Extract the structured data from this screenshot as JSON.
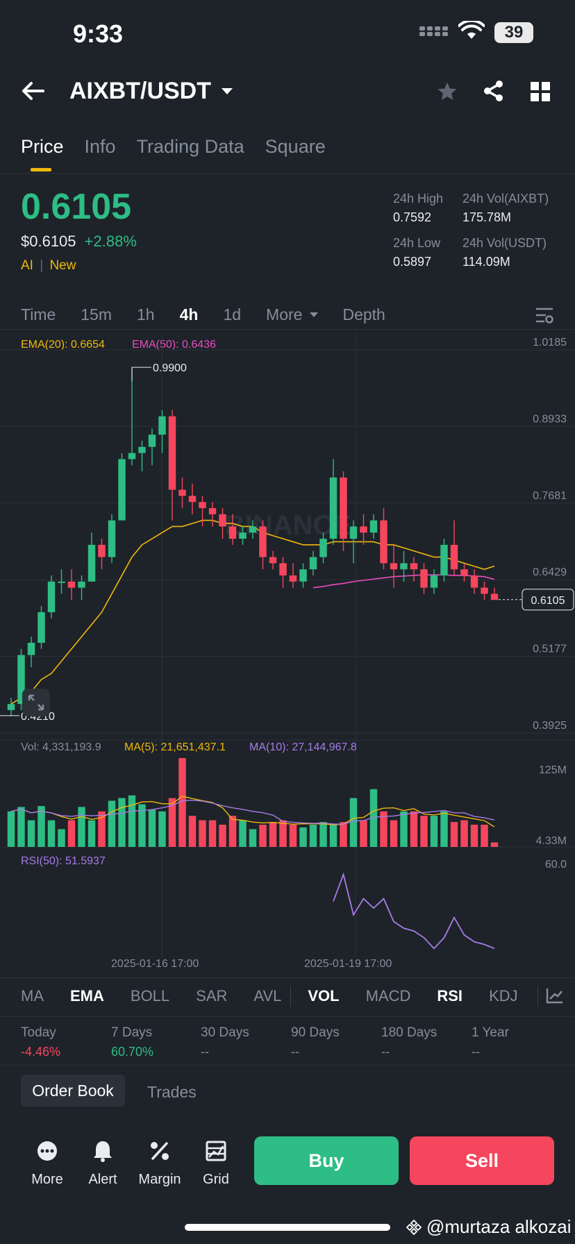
{
  "status": {
    "time": "9:33",
    "battery": "39"
  },
  "header": {
    "pair": "AIXBT/USDT"
  },
  "tabs": [
    "Price",
    "Info",
    "Trading Data",
    "Square"
  ],
  "price": {
    "last": "0.6105",
    "usd": "$0.6105",
    "change": "+2.88%",
    "tag1": "AI",
    "tag2": "New"
  },
  "stats": {
    "high_label": "24h High",
    "high": "0.7592",
    "vol_base_label": "24h Vol(AIXBT)",
    "vol_base": "175.78M",
    "low_label": "24h Low",
    "low": "0.5897",
    "vol_quote_label": "24h Vol(USDT)",
    "vol_quote": "114.09M"
  },
  "timeframes": [
    "Time",
    "15m",
    "1h",
    "4h",
    "1d",
    "More",
    "Depth"
  ],
  "active_timeframe": "4h",
  "chart": {
    "ema20": "EMA(20): 0.6654",
    "ema50": "EMA(50): 0.6436",
    "high_mark": "0.9900",
    "low_mark": "0.4210",
    "current": "0.6105",
    "vol_text": "Vol: 4,331,193.9",
    "ma5": "MA(5): 21,651,437.1",
    "ma10": "MA(10): 27,144,967.8",
    "vol_max": "125M",
    "vol_min": "4.33M",
    "rsi": "RSI(50): 51.5937",
    "rsi_level": "60.0",
    "date1": "2025-01-16 17:00",
    "date2": "2025-01-19 17:00",
    "watermark": "BINANCE"
  },
  "chart_data": {
    "type": "candlestick",
    "y_ticks": [
      "1.0185",
      "0.8933",
      "0.7681",
      "0.6429",
      "0.5177",
      "0.3925"
    ],
    "ylim": [
      0.3925,
      1.0185
    ],
    "candles": [
      [
        0.43,
        0.45,
        0.42,
        0.44
      ],
      [
        0.44,
        0.53,
        0.43,
        0.52
      ],
      [
        0.52,
        0.55,
        0.5,
        0.54
      ],
      [
        0.54,
        0.6,
        0.53,
        0.59
      ],
      [
        0.59,
        0.65,
        0.58,
        0.64
      ],
      [
        0.64,
        0.66,
        0.62,
        0.64
      ],
      [
        0.64,
        0.66,
        0.61,
        0.63
      ],
      [
        0.63,
        0.65,
        0.61,
        0.64
      ],
      [
        0.64,
        0.72,
        0.64,
        0.7
      ],
      [
        0.7,
        0.71,
        0.66,
        0.68
      ],
      [
        0.68,
        0.75,
        0.67,
        0.74
      ],
      [
        0.74,
        0.85,
        0.74,
        0.84
      ],
      [
        0.84,
        0.99,
        0.83,
        0.85
      ],
      [
        0.85,
        0.87,
        0.82,
        0.86
      ],
      [
        0.86,
        0.89,
        0.83,
        0.88
      ],
      [
        0.88,
        0.92,
        0.85,
        0.91
      ],
      [
        0.91,
        0.92,
        0.74,
        0.79
      ],
      [
        0.79,
        0.81,
        0.76,
        0.78
      ],
      [
        0.78,
        0.8,
        0.75,
        0.77
      ],
      [
        0.77,
        0.78,
        0.73,
        0.76
      ],
      [
        0.76,
        0.77,
        0.73,
        0.75
      ],
      [
        0.75,
        0.76,
        0.71,
        0.73
      ],
      [
        0.73,
        0.75,
        0.7,
        0.71
      ],
      [
        0.71,
        0.73,
        0.7,
        0.72
      ],
      [
        0.72,
        0.74,
        0.71,
        0.73
      ],
      [
        0.73,
        0.74,
        0.66,
        0.68
      ],
      [
        0.68,
        0.69,
        0.66,
        0.67
      ],
      [
        0.67,
        0.68,
        0.63,
        0.65
      ],
      [
        0.65,
        0.67,
        0.63,
        0.64
      ],
      [
        0.64,
        0.67,
        0.63,
        0.66
      ],
      [
        0.66,
        0.69,
        0.65,
        0.68
      ],
      [
        0.68,
        0.72,
        0.67,
        0.71
      ],
      [
        0.71,
        0.84,
        0.7,
        0.81
      ],
      [
        0.81,
        0.82,
        0.69,
        0.71
      ],
      [
        0.71,
        0.74,
        0.67,
        0.73
      ],
      [
        0.73,
        0.75,
        0.7,
        0.72
      ],
      [
        0.72,
        0.75,
        0.71,
        0.74
      ],
      [
        0.74,
        0.76,
        0.66,
        0.67
      ],
      [
        0.67,
        0.7,
        0.63,
        0.66
      ],
      [
        0.66,
        0.69,
        0.64,
        0.67
      ],
      [
        0.67,
        0.68,
        0.64,
        0.66
      ],
      [
        0.66,
        0.67,
        0.62,
        0.63
      ],
      [
        0.63,
        0.66,
        0.62,
        0.65
      ],
      [
        0.65,
        0.71,
        0.64,
        0.7
      ],
      [
        0.7,
        0.74,
        0.65,
        0.66
      ],
      [
        0.66,
        0.67,
        0.64,
        0.65
      ],
      [
        0.65,
        0.66,
        0.62,
        0.63
      ],
      [
        0.63,
        0.64,
        0.61,
        0.62
      ],
      [
        0.62,
        0.63,
        0.61,
        0.61
      ]
    ],
    "ema20": [
      0.44,
      0.45,
      0.46,
      0.48,
      0.49,
      0.51,
      0.53,
      0.55,
      0.57,
      0.59,
      0.62,
      0.65,
      0.68,
      0.7,
      0.71,
      0.72,
      0.73,
      0.73,
      0.735,
      0.74,
      0.74,
      0.735,
      0.735,
      0.73,
      0.73,
      0.72,
      0.715,
      0.71,
      0.705,
      0.7,
      0.7,
      0.7,
      0.705,
      0.705,
      0.705,
      0.705,
      0.705,
      0.7,
      0.7,
      0.695,
      0.69,
      0.685,
      0.68,
      0.68,
      0.675,
      0.67,
      0.665,
      0.66,
      0.6654
    ],
    "ema50_start_index": 30,
    "ema50": [
      0.63,
      0.632,
      0.635,
      0.637,
      0.64,
      0.642,
      0.644,
      0.646,
      0.648,
      0.649,
      0.65,
      0.651,
      0.651,
      0.651,
      0.65,
      0.65,
      0.649,
      0.648,
      0.6436
    ],
    "volume": [
      40,
      45,
      30,
      46,
      30,
      20,
      30,
      45,
      30,
      40,
      52,
      55,
      58,
      48,
      42,
      40,
      55,
      100,
      35,
      30,
      30,
      25,
      35,
      30,
      20,
      25,
      28,
      30,
      25,
      22,
      25,
      28,
      25,
      28,
      55,
      30,
      65,
      40,
      30,
      40,
      40,
      35,
      35,
      40,
      28,
      30,
      25,
      25,
      5
    ],
    "rsi": [
      60,
      80,
      50,
      62,
      55,
      62,
      45,
      40,
      38,
      33,
      25,
      33,
      48,
      35,
      30,
      28,
      25
    ]
  },
  "indicators": [
    "MA",
    "EMA",
    "BOLL",
    "SAR",
    "AVL",
    "VOL",
    "MACD",
    "RSI",
    "KDJ"
  ],
  "performance": [
    {
      "label": "Today",
      "value": "-4.46%",
      "color": "#f6465d"
    },
    {
      "label": "7 Days",
      "value": "60.70%",
      "color": "#2ebd85"
    },
    {
      "label": "30 Days",
      "value": "--",
      "color": "#848e9c"
    },
    {
      "label": "90 Days",
      "value": "--",
      "color": "#848e9c"
    },
    {
      "label": "180 Days",
      "value": "--",
      "color": "#848e9c"
    },
    {
      "label": "1 Year",
      "value": "--",
      "color": "#848e9c"
    }
  ],
  "orderbook": {
    "tab1": "Order Book",
    "tab2": "Trades"
  },
  "actions": {
    "more": "More",
    "alert": "Alert",
    "margin": "Margin",
    "grid": "Grid",
    "buy": "Buy",
    "sell": "Sell"
  },
  "watermark_text": "@murtaza alkozai",
  "colors": {
    "up": "#2ebd85",
    "down": "#f6465d",
    "ema20": "#f0b90b",
    "ema50": "#e94cc0",
    "ma10": "#a77ce8",
    "accent": "#f0b90b"
  }
}
